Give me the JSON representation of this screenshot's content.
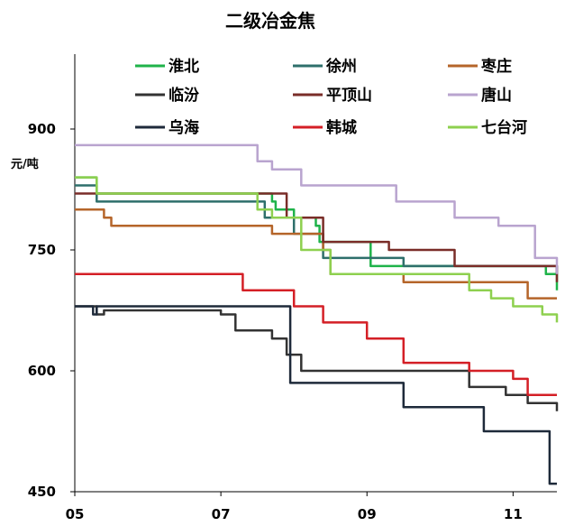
{
  "chart_data": {
    "type": "line",
    "title": "二级冶金焦",
    "ylabel": "元/吨",
    "xlabel": "",
    "ylim": [
      450,
      1000
    ],
    "xlim": [
      5,
      11.6
    ],
    "y_ticks": [
      "900",
      "750",
      "600",
      "450"
    ],
    "y_tick_values": [
      900,
      750,
      600,
      450
    ],
    "x_ticks": [
      "05",
      "07",
      "09",
      "11"
    ],
    "x_tick_values": [
      5,
      7,
      9,
      11
    ],
    "grid": false,
    "legend_position": "top",
    "series": [
      {
        "name": "淮北",
        "color": "#1fb34a",
        "x": [
          5,
          5.3,
          7.2,
          7.7,
          7.75,
          8.0,
          8.3,
          8.35,
          8.6,
          9.0,
          9.05,
          11.45,
          11.6
        ],
        "y": [
          840,
          820,
          820,
          810,
          800,
          790,
          780,
          760,
          760,
          760,
          730,
          720,
          700
        ]
      },
      {
        "name": "徐州",
        "color": "#2e6f6b",
        "x": [
          5,
          5.3,
          7.0,
          7.6,
          8.0,
          8.3,
          8.4,
          9.0,
          9.5,
          11.5,
          11.6
        ],
        "y": [
          830,
          810,
          810,
          790,
          770,
          770,
          740,
          740,
          730,
          730,
          720
        ]
      },
      {
        "name": "枣庄",
        "color": "#b5652a",
        "x": [
          5,
          5.4,
          5.5,
          7.4,
          7.7,
          8.4,
          8.5,
          9.5,
          11.0,
          11.2,
          11.6
        ],
        "y": [
          800,
          790,
          780,
          780,
          770,
          750,
          720,
          710,
          710,
          690,
          690
        ]
      },
      {
        "name": "临汾",
        "color": "#333333",
        "x": [
          5,
          5.3,
          5.4,
          7.0,
          7.2,
          7.7,
          7.9,
          8.1,
          8.4,
          10.2,
          10.4,
          10.9,
          11.2,
          11.6
        ],
        "y": [
          680,
          670,
          675,
          670,
          650,
          640,
          620,
          600,
          600,
          600,
          580,
          570,
          560,
          550
        ]
      },
      {
        "name": "平顶山",
        "color": "#7a2d28",
        "x": [
          5,
          7.7,
          7.9,
          8.0,
          8.4,
          9.3,
          10.2,
          10.6,
          11.6
        ],
        "y": [
          820,
          820,
          790,
          790,
          760,
          750,
          730,
          730,
          710
        ]
      },
      {
        "name": "唐山",
        "color": "#b9a4cf",
        "x": [
          5,
          7.2,
          7.5,
          7.7,
          8.1,
          9.4,
          10.2,
          10.8,
          11.3,
          11.6
        ],
        "y": [
          880,
          880,
          860,
          850,
          830,
          810,
          790,
          780,
          740,
          720
        ]
      },
      {
        "name": "乌海",
        "color": "#1e2a3a",
        "x": [
          5,
          5.2,
          5.25,
          5.3,
          5.35,
          7.9,
          7.95,
          9.5,
          10.6,
          11.45,
          11.5,
          11.6
        ],
        "y": [
          680,
          680,
          670,
          680,
          680,
          680,
          585,
          555,
          525,
          525,
          460,
          460
        ]
      },
      {
        "name": "韩城",
        "color": "#d41f26",
        "x": [
          5,
          7.25,
          7.3,
          7.95,
          8.0,
          8.3,
          8.4,
          8.8,
          9.0,
          9.3,
          9.5,
          10.2,
          10.4,
          11.0,
          11.2,
          11.6
        ],
        "y": [
          720,
          720,
          700,
          700,
          680,
          680,
          660,
          660,
          640,
          640,
          610,
          610,
          600,
          590,
          570,
          570
        ]
      },
      {
        "name": "七台河",
        "color": "#8ed04f",
        "x": [
          5,
          5.3,
          7.2,
          7.5,
          7.7,
          8.1,
          8.5,
          9.1,
          10.4,
          10.7,
          11.0,
          11.4,
          11.6
        ],
        "y": [
          840,
          820,
          820,
          800,
          790,
          750,
          720,
          720,
          700,
          690,
          680,
          670,
          660
        ]
      }
    ]
  }
}
